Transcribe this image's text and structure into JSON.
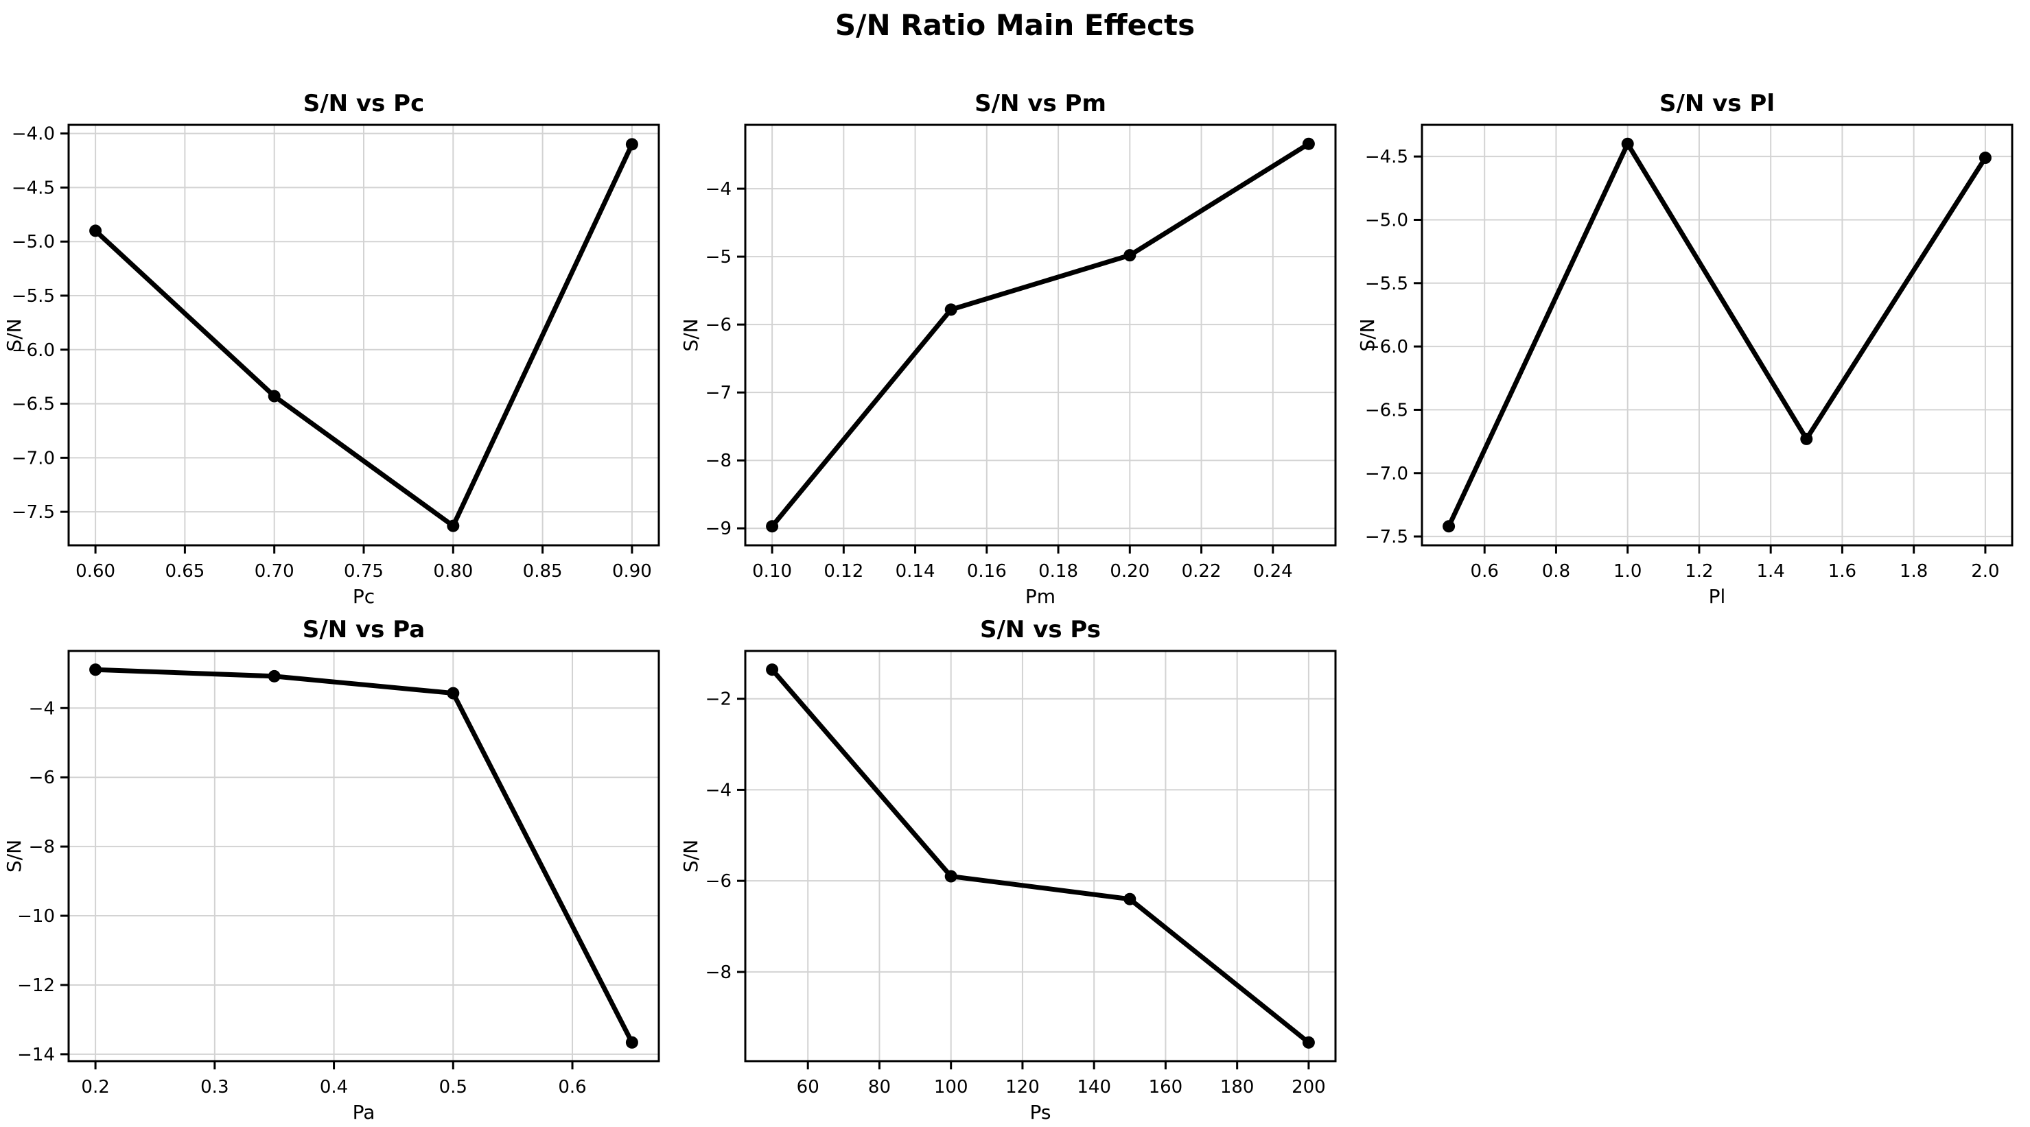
{
  "suptitle": "S/N Ratio Main Effects",
  "colors": {
    "line": "#000000",
    "marker": "#000000",
    "grid": "#d3d3d3",
    "spine": "#000000",
    "text": "#000000",
    "background": "#ffffff"
  },
  "chart_data": [
    {
      "type": "line",
      "title": "S/N vs Pc",
      "xlabel": "Pc",
      "ylabel": "S/N",
      "x": [
        0.6,
        0.7,
        0.8,
        0.9
      ],
      "y": [
        -4.9,
        -6.43,
        -7.63,
        -4.1
      ],
      "xlim": [
        0.585,
        0.915
      ],
      "ylim": [
        -7.81,
        -3.92
      ],
      "xticks": {
        "values": [
          0.6,
          0.65,
          0.7,
          0.75,
          0.8,
          0.85,
          0.9
        ],
        "labels": [
          "0.60",
          "0.65",
          "0.70",
          "0.75",
          "0.80",
          "0.85",
          "0.90"
        ]
      },
      "yticks": {
        "values": [
          -4.0,
          -4.5,
          -5.0,
          -5.5,
          -6.0,
          -6.5,
          -7.0,
          -7.5
        ],
        "labels": [
          "−4.0",
          "−4.5",
          "−5.0",
          "−5.5",
          "−6.0",
          "−6.5",
          "−7.0",
          "−7.5"
        ]
      },
      "grid": true,
      "legend": false,
      "marker": "o"
    },
    {
      "type": "line",
      "title": "S/N vs Pm",
      "xlabel": "Pm",
      "ylabel": "S/N",
      "x": [
        0.1,
        0.15,
        0.2,
        0.25
      ],
      "y": [
        -8.97,
        -5.78,
        -4.98,
        -3.34
      ],
      "xlim": [
        0.0925,
        0.2575
      ],
      "ylim": [
        -9.25,
        -3.06
      ],
      "xticks": {
        "values": [
          0.1,
          0.12,
          0.14,
          0.16,
          0.18,
          0.2,
          0.22,
          0.24
        ],
        "labels": [
          "0.10",
          "0.12",
          "0.14",
          "0.16",
          "0.18",
          "0.20",
          "0.22",
          "0.24"
        ]
      },
      "yticks": {
        "values": [
          -4,
          -5,
          -6,
          -7,
          -8,
          -9
        ],
        "labels": [
          "−4",
          "−5",
          "−6",
          "−7",
          "−8",
          "−9"
        ]
      },
      "grid": true,
      "legend": false,
      "marker": "o"
    },
    {
      "type": "line",
      "title": "S/N vs Pl",
      "xlabel": "Pl",
      "ylabel": "S/N",
      "x": [
        0.5,
        1.0,
        1.5,
        2.0
      ],
      "y": [
        -7.42,
        -4.4,
        -6.73,
        -4.51
      ],
      "xlim": [
        0.425,
        2.075
      ],
      "ylim": [
        -7.57,
        -4.25
      ],
      "xticks": {
        "values": [
          0.6,
          0.8,
          1.0,
          1.2,
          1.4,
          1.6,
          1.8,
          2.0
        ],
        "labels": [
          "0.6",
          "0.8",
          "1.0",
          "1.2",
          "1.4",
          "1.6",
          "1.8",
          "2.0"
        ]
      },
      "yticks": {
        "values": [
          -4.5,
          -5.0,
          -5.5,
          -6.0,
          -6.5,
          -7.0,
          -7.5
        ],
        "labels": [
          "−4.5",
          "−5.0",
          "−5.5",
          "−6.0",
          "−6.5",
          "−7.0",
          "−7.5"
        ]
      },
      "grid": true,
      "legend": false,
      "marker": "o"
    },
    {
      "type": "line",
      "title": "S/N vs Pa",
      "xlabel": "Pa",
      "ylabel": "S/N",
      "x": [
        0.2,
        0.35,
        0.5,
        0.65
      ],
      "y": [
        -2.89,
        -3.08,
        -3.57,
        -13.66
      ],
      "xlim": [
        0.1775,
        0.6725
      ],
      "ylim": [
        -14.2,
        -2.35
      ],
      "xticks": {
        "values": [
          0.2,
          0.3,
          0.4,
          0.5,
          0.6
        ],
        "labels": [
          "0.2",
          "0.3",
          "0.4",
          "0.5",
          "0.6"
        ]
      },
      "yticks": {
        "values": [
          -4,
          -6,
          -8,
          -10,
          -12,
          -14
        ],
        "labels": [
          "−4",
          "−6",
          "−8",
          "−10",
          "−12",
          "−14"
        ]
      },
      "grid": true,
      "legend": false,
      "marker": "o"
    },
    {
      "type": "line",
      "title": "S/N vs Ps",
      "xlabel": "Ps",
      "ylabel": "S/N",
      "x": [
        50,
        100,
        150,
        200
      ],
      "y": [
        -1.36,
        -5.9,
        -6.4,
        -9.55
      ],
      "xlim": [
        42.5,
        207.5
      ],
      "ylim": [
        -9.96,
        -0.95
      ],
      "xticks": {
        "values": [
          60,
          80,
          100,
          120,
          140,
          160,
          180,
          200
        ],
        "labels": [
          "60",
          "80",
          "100",
          "120",
          "140",
          "160",
          "180",
          "200"
        ]
      },
      "yticks": {
        "values": [
          -2,
          -4,
          -6,
          -8
        ],
        "labels": [
          "−2",
          "−4",
          "−6",
          "−8"
        ]
      },
      "grid": true,
      "legend": false,
      "marker": "o"
    }
  ]
}
